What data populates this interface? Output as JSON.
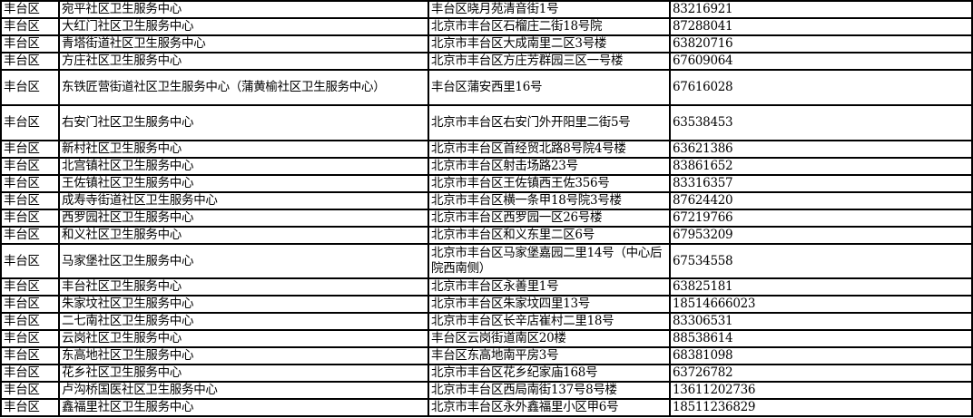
{
  "table": {
    "rows": [
      {
        "district": "丰台区",
        "name": "宛平社区卫生服务中心",
        "address": "丰台区晓月苑清音街1号",
        "phone": "83216921"
      },
      {
        "district": "丰台区",
        "name": "大红门社区卫生服务中心",
        "address": "北京市丰台区石榴庄二街18号院",
        "phone": "87288041"
      },
      {
        "district": "丰台区",
        "name": "青塔街道社区卫生服务中心",
        "address": "北京市丰台区大成南里二区3号楼",
        "phone": "63820716"
      },
      {
        "district": "丰台区",
        "name": "方庄社区卫生服务中心",
        "address": "北京市丰台区方庄芳群园三区一号楼",
        "phone": "67609064"
      },
      {
        "district": "丰台区",
        "name": "东铁匠营街道社区卫生服务中心（蒲黄榆社区卫生服务中心）",
        "address": "丰台区蒲安西里16号",
        "phone": "67616028"
      },
      {
        "district": "丰台区",
        "name": "右安门社区卫生服务中心",
        "address": "北京市丰台区右安门外开阳里二街5号",
        "phone": "63538453"
      },
      {
        "district": "丰台区",
        "name": "新村社区卫生服务中心",
        "address": "北京市丰台区首经贸北路8号院4号楼",
        "phone": "63621386"
      },
      {
        "district": "丰台区",
        "name": "北宫镇社区卫生服务中心",
        "address": "北京市丰台区射击场路23号",
        "phone": "83861652"
      },
      {
        "district": "丰台区",
        "name": "王佐镇社区卫生服务中心",
        "address": "北京市丰台区王佐镇西王佐356号",
        "phone": "83316357"
      },
      {
        "district": "丰台区",
        "name": "成寿寺街道社区卫生服务中心",
        "address": "北京市丰台区横一条甲18号院3号楼",
        "phone": "87624420"
      },
      {
        "district": "丰台区",
        "name": "西罗园社区卫生服务中心",
        "address": "北京市丰台区西罗园一区26号楼",
        "phone": "67219766"
      },
      {
        "district": "丰台区",
        "name": "和义社区卫生服务中心",
        "address": "北京市丰台区和义东里二区6号",
        "phone": "67953209"
      },
      {
        "district": "丰台区",
        "name": "马家堡社区卫生服务中心",
        "address": "北京市丰台区马家堡嘉园二里14号（中心后院西南侧）",
        "phone": "67534558"
      },
      {
        "district": "丰台区",
        "name": "丰台社区卫生服务中心",
        "address": "北京市丰台区永善里1号",
        "phone": "63825181"
      },
      {
        "district": "丰台区",
        "name": "朱家坟社区卫生服务中心",
        "address": "北京市丰台区朱家坟四里13号",
        "phone": "18514666023"
      },
      {
        "district": "丰台区",
        "name": "二七南社区卫生服务中心",
        "address": "北京市丰台区长辛店崔村二里18号",
        "phone": "83306531"
      },
      {
        "district": "丰台区",
        "name": "云岗社区卫生服务中心",
        "address": "丰台区云岗街道南区20楼",
        "phone": "88538614"
      },
      {
        "district": "丰台区",
        "name": "东高地社区卫生服务中心",
        "address": "丰台区东高地南平房3号",
        "phone": "68381098"
      },
      {
        "district": "丰台区",
        "name": "花乡社区卫生服务中心",
        "address": "北京市丰台区花乡纪家庙168号",
        "phone": "63726782"
      },
      {
        "district": "丰台区",
        "name": "卢沟桥国医社区卫生服务中心",
        "address": "北京市丰台区西局南街137号8号楼",
        "phone": "13611202736"
      },
      {
        "district": "丰台区",
        "name": "鑫福里社区卫生服务中心",
        "address": "北京市丰台区永外鑫福里小区甲6号",
        "phone": "18511236829"
      }
    ]
  }
}
